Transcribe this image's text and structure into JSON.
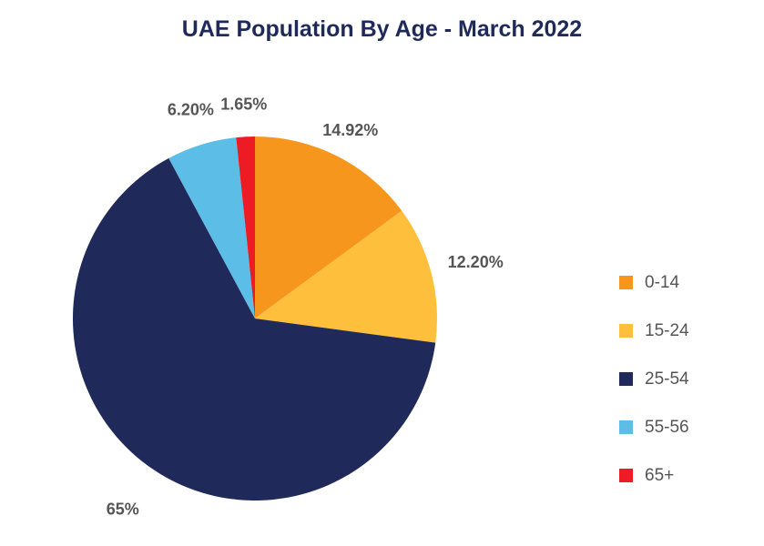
{
  "chart_data": {
    "type": "pie",
    "title": "UAE Population By Age - March 2022",
    "categories": [
      "0-14",
      "15-24",
      "25-54",
      "55-56",
      "65+"
    ],
    "values": [
      14.92,
      12.2,
      65,
      6.2,
      1.65
    ],
    "value_labels": [
      "14.92%",
      "12.20%",
      "65%",
      "6.20%",
      "1.65%"
    ],
    "colors": [
      "#f7961d",
      "#fdbf3c",
      "#1f2a5a",
      "#5cbde6",
      "#ed1c24"
    ],
    "legend": "right",
    "start_angle": "12 o'clock",
    "direction": "clockwise"
  }
}
